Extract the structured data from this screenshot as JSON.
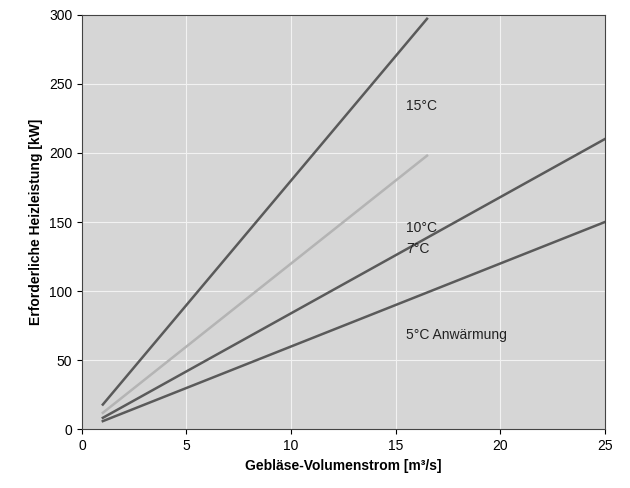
{
  "chart_data": {
    "type": "line",
    "x_label": "Gebläse-Volumenstrom [m³/s]",
    "y_label": "Erforderliche Heizleistung [kW]",
    "series": [
      {
        "name": "15°C",
        "color": "#5a5a5a",
        "x": [
          1,
          16.5
        ],
        "values": [
          18,
          297
        ]
      },
      {
        "name": "10°C",
        "color": "#b4b4b4",
        "x": [
          1,
          16.5
        ],
        "values": [
          12,
          198
        ]
      },
      {
        "name": "7°C",
        "color": "#5a5a5a",
        "x": [
          1,
          25
        ],
        "values": [
          8.4,
          210
        ]
      },
      {
        "name": "5°C Anwärmung",
        "color": "#5a5a5a",
        "x": [
          1,
          25
        ],
        "values": [
          6,
          150
        ]
      }
    ],
    "xlim": [
      0,
      25
    ],
    "xticks": [
      0,
      5,
      10,
      15,
      20,
      25
    ],
    "ylim": [
      0,
      300
    ],
    "yticks": [
      0,
      50,
      100,
      150,
      200,
      250,
      300
    ],
    "grid": true
  }
}
